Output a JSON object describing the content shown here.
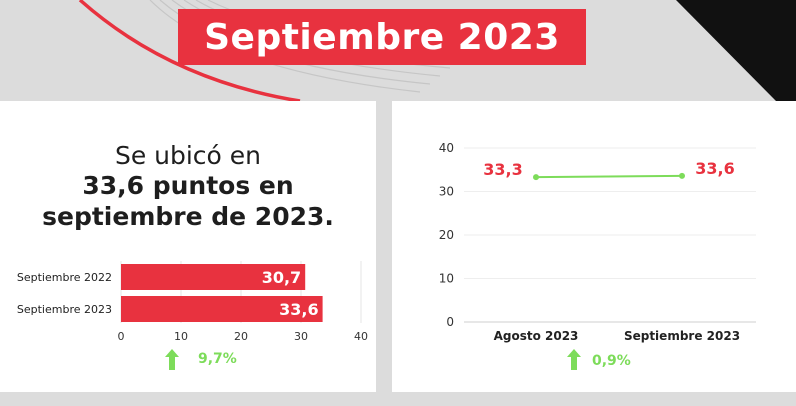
{
  "title": "Septiembre 2023",
  "headline": {
    "line1": "Se ubicó en",
    "line2": "33,6  puntos en",
    "line3": "septiembre de 2023."
  },
  "colors": {
    "accent": "#e8323f",
    "line": "#7ddc5a",
    "increase": "#7ddc5a",
    "text": "#1e1e1e"
  },
  "chart_data": [
    {
      "type": "bar",
      "orientation": "horizontal",
      "categories": [
        "Septiembre 2022",
        "Septiembre 2023"
      ],
      "values": [
        30.7,
        33.6
      ],
      "value_labels": [
        "30,7",
        "33,6"
      ],
      "xlim": [
        0,
        40
      ],
      "x_ticks": [
        "0",
        "10",
        "20",
        "30",
        "40"
      ],
      "grid": true,
      "change": {
        "icon": "arrow-up-icon",
        "label": "9,7%"
      }
    },
    {
      "type": "line",
      "categories": [
        "Agosto 2023",
        "Septiembre 2023"
      ],
      "values": [
        33.3,
        33.6
      ],
      "value_labels": [
        "33,3",
        "33,6"
      ],
      "ylim": [
        0,
        40
      ],
      "y_ticks": [
        "0",
        "10",
        "20",
        "30",
        "40"
      ],
      "grid": true,
      "change": {
        "icon": "arrow-up-icon",
        "label": "0,9%"
      }
    }
  ]
}
